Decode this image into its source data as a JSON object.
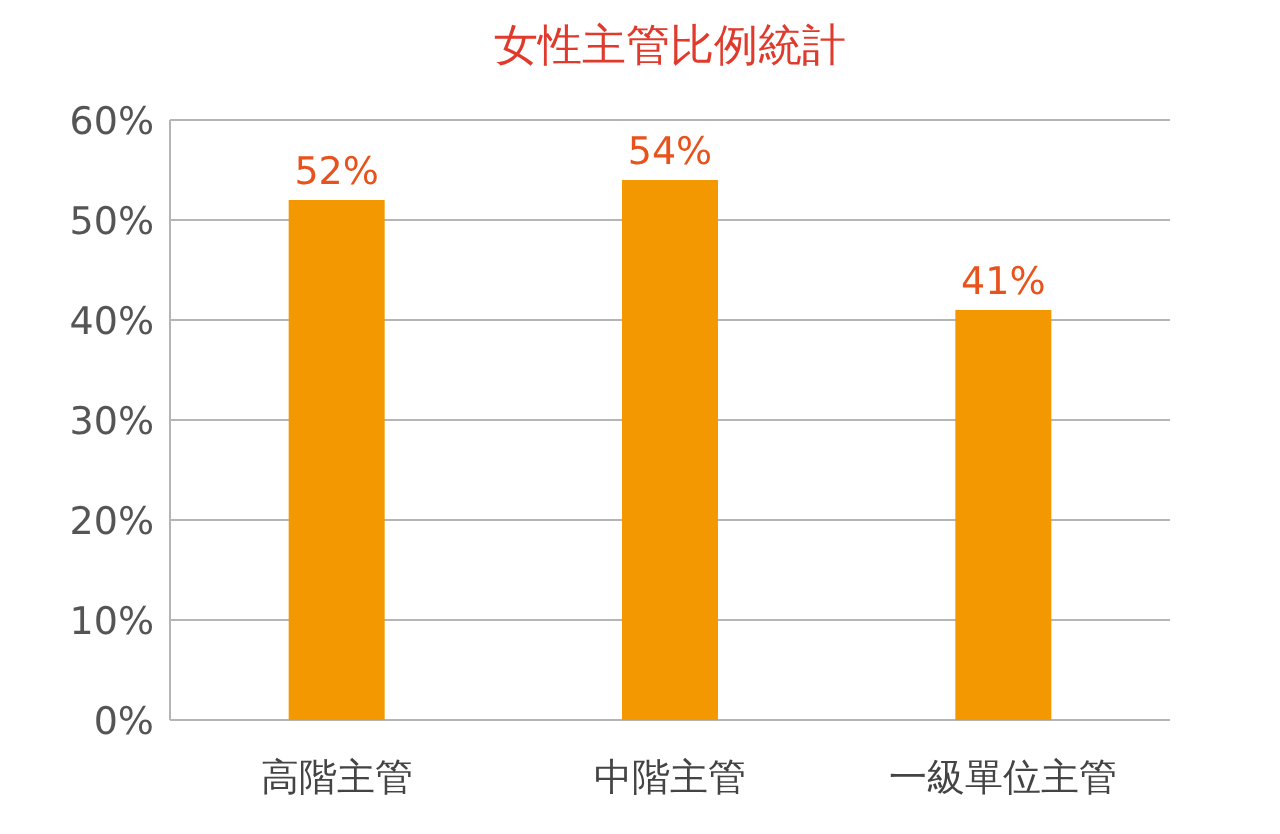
{
  "chart_data": {
    "type": "bar",
    "title": "女性主管比例統計",
    "categories": [
      "高階主管",
      "中階主管",
      "一級單位主管"
    ],
    "values": [
      52,
      54,
      41
    ],
    "value_labels": [
      "52%",
      "54%",
      "41%"
    ],
    "color": "#f39800",
    "ylim": [
      0,
      60
    ],
    "yticks": [
      {
        "value": 0,
        "label": "0%"
      },
      {
        "value": 10,
        "label": "10%"
      },
      {
        "value": 20,
        "label": "20%"
      },
      {
        "value": 30,
        "label": "30%"
      },
      {
        "value": 40,
        "label": "40%"
      },
      {
        "value": 50,
        "label": "50%"
      },
      {
        "value": 60,
        "label": "60%"
      }
    ],
    "grid": "y"
  }
}
